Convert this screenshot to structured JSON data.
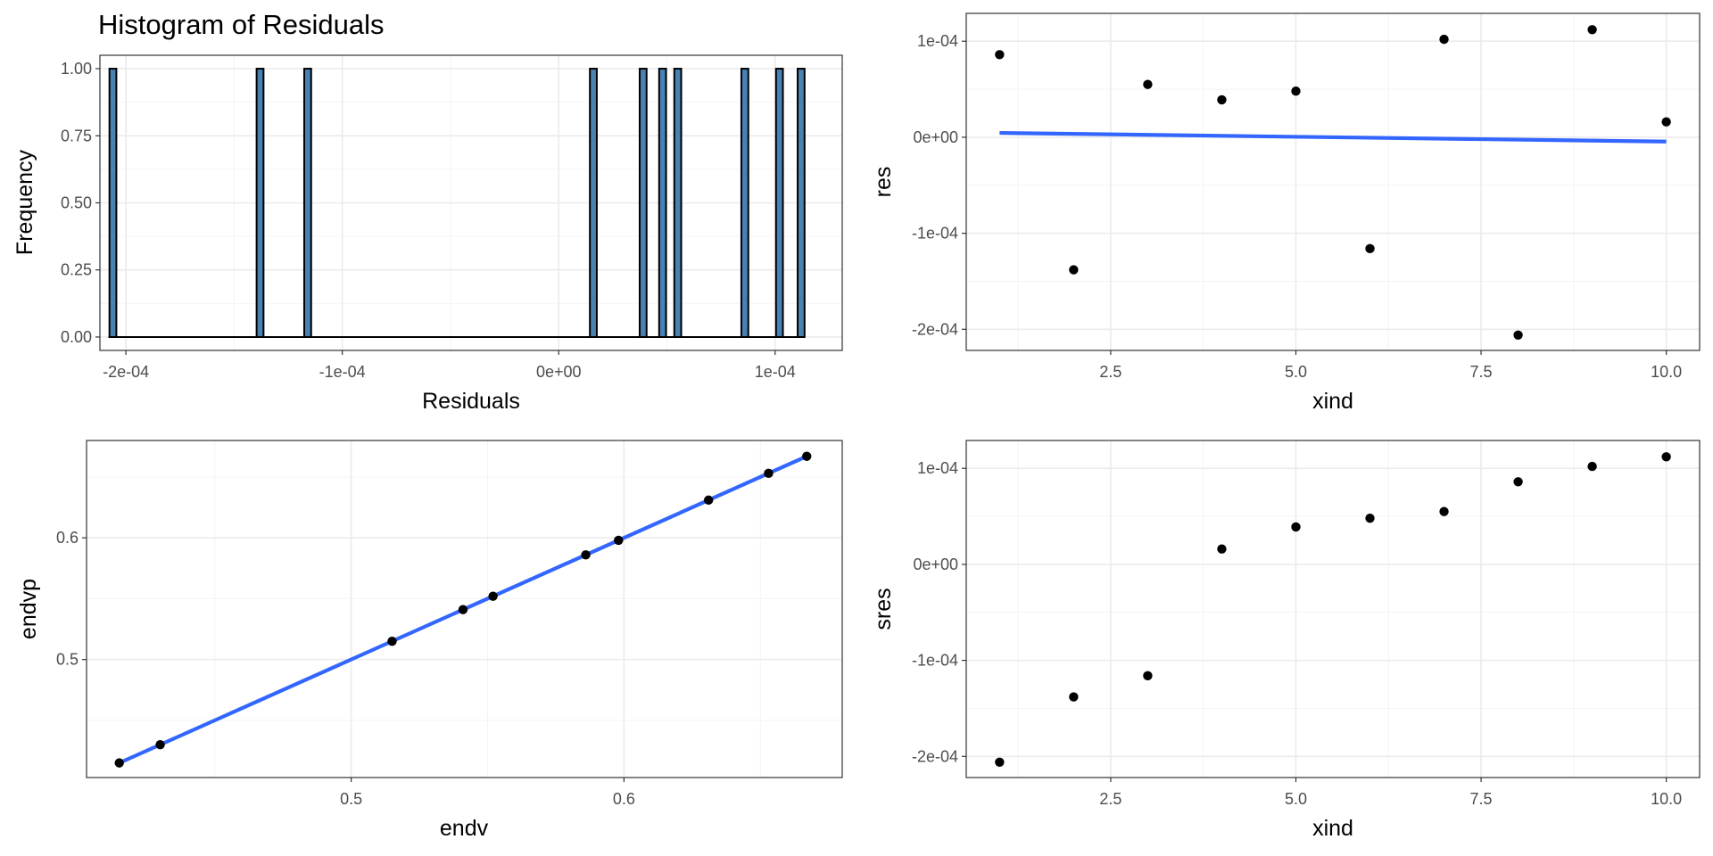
{
  "colors": {
    "bar_fill": "#4682b4",
    "bar_outline": "#000000",
    "point": "#000000",
    "smooth_line": "#3366ff",
    "grid": "#ebebeb",
    "panel_border": "#333333"
  },
  "chart_data": [
    {
      "id": "histogram",
      "type": "bar",
      "title": "Histogram of Residuals",
      "xlabel": "Residuals",
      "ylabel": "Frequency",
      "xlim": [
        -0.000212,
        0.000131
      ],
      "ylim": [
        -0.05,
        1.05
      ],
      "x_ticks": [
        -0.0002,
        -0.0001,
        0.0,
        0.0001
      ],
      "x_tick_labels": [
        "-2e-04",
        "-1e-04",
        "0e+00",
        "1e-04"
      ],
      "y_ticks": [
        0.0,
        0.25,
        0.5,
        0.75,
        1.0
      ],
      "y_tick_labels": [
        "0.00",
        "0.25",
        "0.50",
        "0.75",
        "1.00"
      ],
      "bar_width": 3.2e-06,
      "bar_range": [
        -0.000208,
        0.000113
      ],
      "bars": [
        {
          "x": -0.000206,
          "count": 1
        },
        {
          "x": -0.000138,
          "count": 1
        },
        {
          "x": -0.000116,
          "count": 1
        },
        {
          "x": 1.6e-05,
          "count": 1
        },
        {
          "x": 3.9e-05,
          "count": 1
        },
        {
          "x": 4.8e-05,
          "count": 1
        },
        {
          "x": 5.5e-05,
          "count": 1
        },
        {
          "x": 8.6e-05,
          "count": 1
        },
        {
          "x": 0.000102,
          "count": 1
        },
        {
          "x": 0.000112,
          "count": 1
        }
      ],
      "grid": true
    },
    {
      "id": "res-vs-xind",
      "type": "scatter",
      "title": "",
      "xlabel": "xind",
      "ylabel": "res",
      "xlim": [
        0.55,
        10.45
      ],
      "ylim": [
        -0.000222,
        0.000129
      ],
      "x_ticks": [
        2.5,
        5.0,
        7.5,
        10.0
      ],
      "x_tick_labels": [
        "2.5",
        "5.0",
        "7.5",
        "10.0"
      ],
      "y_ticks": [
        -0.0002,
        -0.0001,
        0.0,
        0.0001
      ],
      "y_tick_labels": [
        "-2e-04",
        "-1e-04",
        "0e+00",
        "1e-04"
      ],
      "x": [
        1,
        2,
        3,
        4,
        5,
        6,
        7,
        8,
        9,
        10
      ],
      "y": [
        8.6e-05,
        -0.000138,
        5.5e-05,
        3.9e-05,
        4.8e-05,
        -0.000116,
        0.000102,
        -0.000206,
        0.000112,
        1.6e-05
      ],
      "fit_line": {
        "x": [
          1,
          10
        ],
        "y": [
          4.5e-06,
          -4.5e-06
        ]
      },
      "grid": true
    },
    {
      "id": "endvp-vs-endv",
      "type": "scatter",
      "title": "",
      "xlabel": "endv",
      "ylabel": "endvp",
      "xlim": [
        0.403,
        0.68
      ],
      "ylim": [
        0.403,
        0.68
      ],
      "x_ticks": [
        0.5,
        0.6
      ],
      "x_tick_labels": [
        "0.5",
        "0.6"
      ],
      "y_ticks": [
        0.5,
        0.6
      ],
      "y_tick_labels": [
        "0.5",
        "0.6"
      ],
      "x": [
        0.415,
        0.43,
        0.515,
        0.541,
        0.552,
        0.586,
        0.598,
        0.631,
        0.653,
        0.667
      ],
      "y": [
        0.415,
        0.43,
        0.515,
        0.541,
        0.552,
        0.586,
        0.598,
        0.631,
        0.653,
        0.667
      ],
      "fit_line": {
        "x": [
          0.415,
          0.667
        ],
        "y": [
          0.415,
          0.667
        ]
      },
      "grid": true
    },
    {
      "id": "sres-vs-xind",
      "type": "scatter",
      "title": "",
      "xlabel": "xind",
      "ylabel": "sres",
      "xlim": [
        0.55,
        10.45
      ],
      "ylim": [
        -0.000222,
        0.000129
      ],
      "x_ticks": [
        2.5,
        5.0,
        7.5,
        10.0
      ],
      "x_tick_labels": [
        "2.5",
        "5.0",
        "7.5",
        "10.0"
      ],
      "y_ticks": [
        -0.0002,
        -0.0001,
        0.0,
        0.0001
      ],
      "y_tick_labels": [
        "-2e-04",
        "-1e-04",
        "0e+00",
        "1e-04"
      ],
      "x": [
        1,
        2,
        3,
        4,
        5,
        6,
        7,
        8,
        9,
        10
      ],
      "y": [
        -0.000206,
        -0.000138,
        -0.000116,
        1.6e-05,
        3.9e-05,
        4.8e-05,
        5.5e-05,
        8.6e-05,
        0.000102,
        0.000112
      ],
      "grid": true
    }
  ]
}
